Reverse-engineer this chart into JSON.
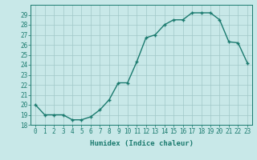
{
  "x": [
    0,
    1,
    2,
    3,
    4,
    5,
    6,
    7,
    8,
    9,
    10,
    11,
    12,
    13,
    14,
    15,
    16,
    17,
    18,
    19,
    20,
    21,
    22,
    23
  ],
  "y": [
    20,
    19,
    19,
    19,
    18.5,
    18.5,
    18.8,
    19.5,
    20.5,
    22.2,
    22.2,
    24.3,
    26.7,
    27.0,
    28.0,
    28.5,
    28.5,
    29.2,
    29.2,
    29.2,
    28.5,
    26.3,
    26.2,
    24.2
  ],
  "line_color": "#1a7a6e",
  "marker": "+",
  "marker_color": "#1a7a6e",
  "bg_color": "#c8e8e8",
  "grid_color_major": "#a0c8c8",
  "xlabel": "Humidex (Indice chaleur)",
  "ylim": [
    18,
    30
  ],
  "xlim": [
    -0.5,
    23.5
  ],
  "yticks": [
    18,
    19,
    20,
    21,
    22,
    23,
    24,
    25,
    26,
    27,
    28,
    29
  ],
  "xticks": [
    0,
    1,
    2,
    3,
    4,
    5,
    6,
    7,
    8,
    9,
    10,
    11,
    12,
    13,
    14,
    15,
    16,
    17,
    18,
    19,
    20,
    21,
    22,
    23
  ],
  "font_color": "#1a7a6e",
  "xlabel_fontsize": 6.5,
  "tick_fontsize": 5.5,
  "linewidth": 1.0,
  "markersize": 3.5
}
